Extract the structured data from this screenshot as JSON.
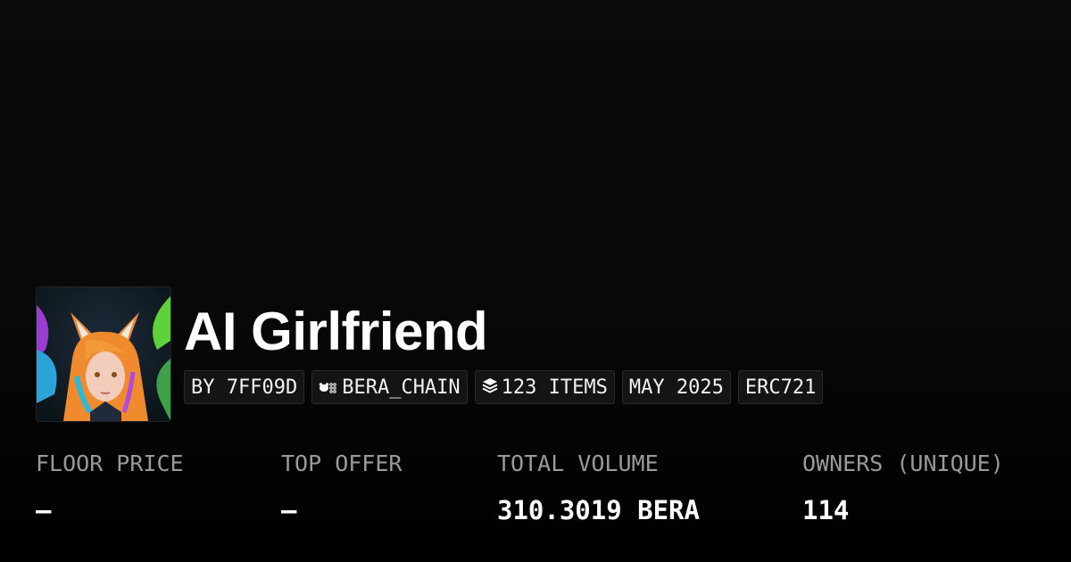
{
  "collection": {
    "title": "AI Girlfriend"
  },
  "badges": [
    {
      "label": "BY 7FF09D"
    },
    {
      "label": "BERA_CHAIN",
      "icon": "bera-chain-icon"
    },
    {
      "label": "123 ITEMS",
      "icon": "layers-icon"
    },
    {
      "label": "MAY 2025"
    },
    {
      "label": "ERC721"
    }
  ],
  "stats": [
    {
      "label": "FLOOR PRICE",
      "value": "–"
    },
    {
      "label": "TOP OFFER",
      "value": "–"
    },
    {
      "label": "TOTAL VOLUME",
      "value": "310.3019 BERA"
    },
    {
      "label": "OWNERS (UNIQUE)",
      "value": "114"
    }
  ]
}
